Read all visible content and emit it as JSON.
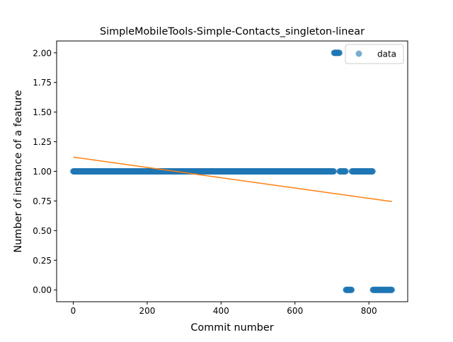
{
  "chart_data": {
    "type": "scatter",
    "title": "SimpleMobileTools-Simple-Contacts_singleton-linear",
    "xlabel": "Commit number",
    "ylabel": "Number of instance of a feature",
    "xlim": [
      -45,
      905
    ],
    "ylim": [
      -0.1,
      2.1
    ],
    "xticks": [
      0,
      200,
      400,
      600,
      800
    ],
    "yticks": [
      0.0,
      0.25,
      0.5,
      0.75,
      1.0,
      1.25,
      1.5,
      1.75,
      2.0
    ],
    "xtick_labels": [
      "0",
      "200",
      "400",
      "600",
      "800"
    ],
    "ytick_labels": [
      "0.00",
      "0.25",
      "0.50",
      "0.75",
      "1.00",
      "1.25",
      "1.50",
      "1.75",
      "2.00"
    ],
    "legend": {
      "placement": "top-right",
      "entries": [
        "data"
      ]
    },
    "grid": false,
    "series": [
      {
        "name": "data",
        "kind": "scatter",
        "color": "#1f77b4",
        "segments": [
          {
            "x_start": 0,
            "x_end": 705,
            "y": 1
          },
          {
            "x_start": 706,
            "x_end": 720,
            "y": 2
          },
          {
            "x_start": 721,
            "x_end": 737,
            "y": 1
          },
          {
            "x_start": 738,
            "x_end": 753,
            "y": 0
          },
          {
            "x_start": 754,
            "x_end": 810,
            "y": 1
          },
          {
            "x_start": 811,
            "x_end": 862,
            "y": 0
          }
        ]
      },
      {
        "kind": "line",
        "color": "#ff7f0e",
        "x": [
          0,
          862
        ],
        "y": [
          1.12,
          0.745
        ]
      }
    ]
  }
}
